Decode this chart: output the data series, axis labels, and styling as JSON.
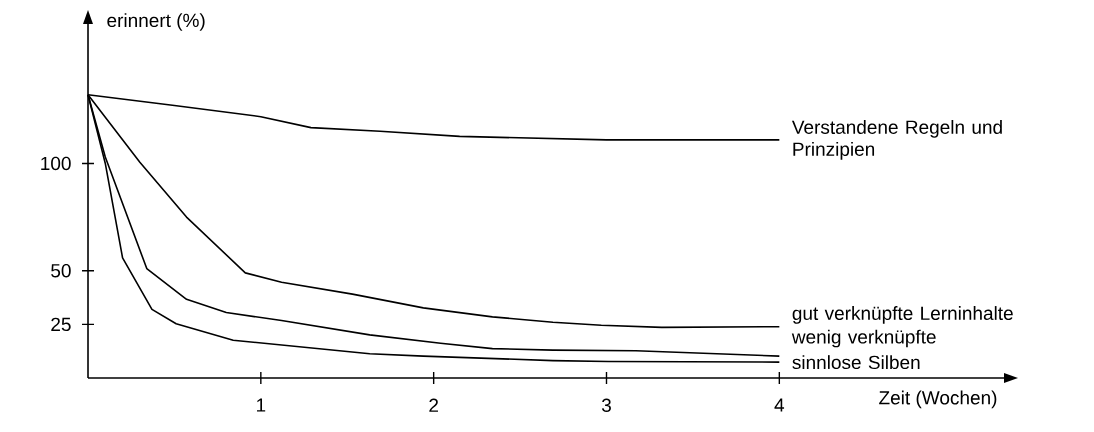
{
  "chart_data": {
    "type": "line",
    "xlabel": "Zeit (Wochen)",
    "ylabel": "erinnert (%)",
    "xlim": [
      0,
      5.3
    ],
    "ylim": [
      0,
      165
    ],
    "xticks": [
      1,
      2,
      3,
      4
    ],
    "yticks": [
      25,
      50,
      100
    ],
    "marker": "none",
    "series": [
      {
        "name": "Verstandene Regeln und Prinzipien",
        "color": "#000000",
        "x": [
          0,
          0.5,
          1,
          1.29,
          1.69,
          2.15,
          3,
          4
        ],
        "values": [
          132,
          127,
          121.8,
          116.7,
          115,
          112.6,
          111,
          111
        ]
      },
      {
        "name": "gut verknüpfte Lerninhalte",
        "color": "#000000",
        "x": [
          0,
          0.3,
          0.57,
          0.91,
          1.12,
          1.53,
          1.94,
          2.34,
          2.69,
          2.97,
          3.32,
          4
        ],
        "values": [
          132,
          100.6,
          75,
          49,
          44.6,
          39.1,
          32.7,
          28.5,
          26,
          24.6,
          23.6,
          23.9
        ]
      },
      {
        "name": "wenig verknüpfte",
        "color": "#000000",
        "x": [
          0,
          0.1,
          0.34,
          0.57,
          0.8,
          1.12,
          1.63,
          2.04,
          2.34,
          2.69,
          3.17,
          4
        ],
        "values": [
          132,
          103,
          51,
          36.7,
          30.5,
          26.8,
          20.1,
          16.2,
          13.7,
          13,
          12.7,
          10.2
        ]
      },
      {
        "name": "sinnlose Silben",
        "color": "#000000",
        "x": [
          0,
          0.1,
          0.2,
          0.37,
          0.51,
          0.84,
          1.63,
          1.94,
          2.69,
          3.01,
          4
        ],
        "values": [
          132,
          100,
          56,
          32,
          25.3,
          17.6,
          11.3,
          10.2,
          8.1,
          7.7,
          7.4
        ]
      }
    ]
  }
}
